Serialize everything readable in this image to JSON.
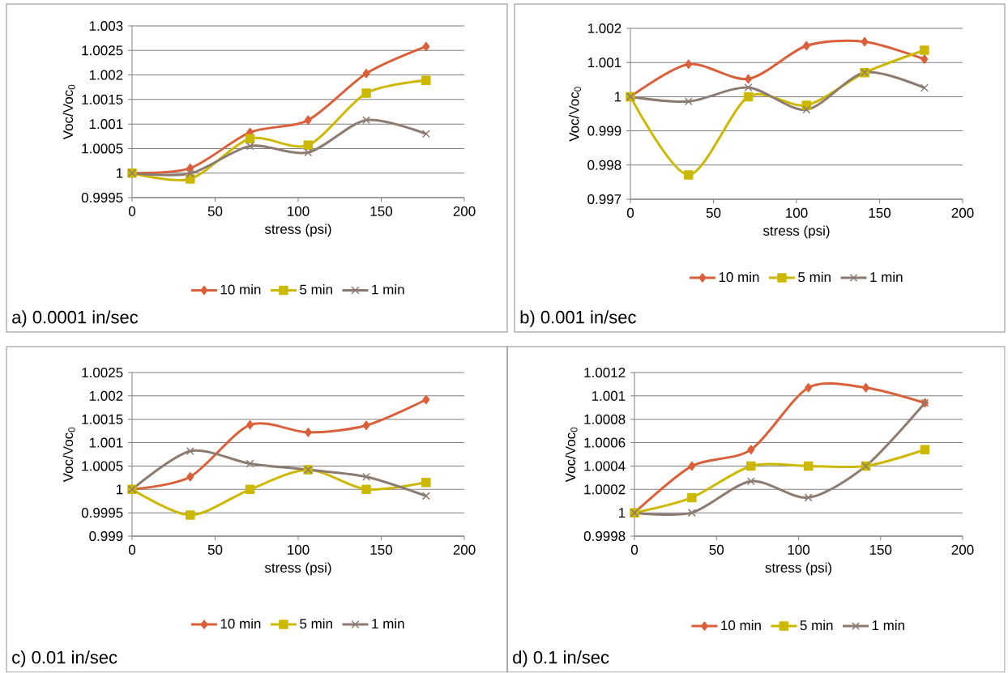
{
  "chart_data": [
    {
      "type": "line",
      "xlabel": "stress (psi)",
      "ylabel": "Voc/Voc$_{0}$",
      "x": [
        0,
        35,
        71,
        106,
        141,
        177
      ],
      "xlim": [
        0,
        200
      ],
      "xticks": [
        0,
        50,
        100,
        150,
        200
      ],
      "ylim": [
        0.9995,
        1.003
      ],
      "yticks": [
        0.9995,
        1,
        1.0005,
        1.001,
        1.0015,
        1.002,
        1.0025,
        1.003
      ],
      "grid": "y",
      "legend": "bottom",
      "line_style": "solid",
      "annotations": [
        "a) 0.0001 in/sec"
      ],
      "series": [
        {
          "name": "10 min",
          "color": "#d9603b",
          "marker": "diamond",
          "values": [
            1,
            1.0001,
            1.00083,
            1.00108,
            1.00203,
            1.00258
          ]
        },
        {
          "name": "5 min",
          "color": "#cdb800",
          "marker": "square",
          "values": [
            1,
            0.99988,
            1.0007,
            1.00057,
            1.00163,
            1.00189
          ]
        },
        {
          "name": "1 min",
          "color": "#8c7b70",
          "marker": "cross",
          "values": [
            1,
            0.99999,
            1.00055,
            1.00042,
            1.00108,
            1.0008
          ]
        }
      ]
    },
    {
      "type": "line",
      "xlabel": "stress (psi)",
      "ylabel": "Voc/Voc$_{0}$",
      "x": [
        0,
        35,
        71,
        106,
        141,
        177
      ],
      "xlim": [
        0,
        200
      ],
      "xticks": [
        0,
        50,
        100,
        150,
        200
      ],
      "ylim": [
        0.997,
        1.002
      ],
      "yticks": [
        0.997,
        0.998,
        0.999,
        1,
        1.001,
        1.002
      ],
      "grid": "y",
      "legend": "bottom",
      "line_style": "solid",
      "annotations": [
        "b) 0.001 in/sec"
      ],
      "series": [
        {
          "name": "10 min",
          "color": "#d9603b",
          "marker": "diamond",
          "values": [
            1,
            1.00095,
            1.00052,
            1.00149,
            1.00161,
            1.0011
          ]
        },
        {
          "name": "5 min",
          "color": "#cdb800",
          "marker": "square",
          "values": [
            1,
            0.99771,
            1.0,
            0.99975,
            1.0007,
            1.00136
          ]
        },
        {
          "name": "1 min",
          "color": "#8c7b70",
          "marker": "cross",
          "values": [
            1,
            0.99986,
            1.00027,
            0.99962,
            1.00071,
            1.00026
          ]
        }
      ]
    },
    {
      "type": "line",
      "xlabel": "stress (psi)",
      "ylabel": "Voc/Voc$_{0}$",
      "x": [
        0,
        35,
        71,
        106,
        141,
        177
      ],
      "xlim": [
        0,
        200
      ],
      "xticks": [
        0,
        50,
        100,
        150,
        200
      ],
      "ylim": [
        0.999,
        1.0025
      ],
      "yticks": [
        0.999,
        0.9995,
        1,
        1.0005,
        1.001,
        1.0015,
        1.002,
        1.0025
      ],
      "grid": "y",
      "legend": "bottom",
      "line_style": "solid",
      "annotations": [
        "c) 0.01 in/sec"
      ],
      "series": [
        {
          "name": "10 min",
          "color": "#d9603b",
          "marker": "diamond",
          "values": [
            1,
            1.00027,
            1.00138,
            1.00122,
            1.00137,
            1.00192
          ]
        },
        {
          "name": "5 min",
          "color": "#cdb800",
          "marker": "square",
          "values": [
            1,
            0.99945,
            1.0,
            1.00042,
            1.0,
            1.00015
          ]
        },
        {
          "name": "1 min",
          "color": "#8c7b70",
          "marker": "cross",
          "values": [
            1,
            1.00082,
            1.00055,
            1.00042,
            1.00027,
            0.99986
          ]
        }
      ]
    },
    {
      "type": "line",
      "xlabel": "stress (psi)",
      "ylabel": "Voc/Voc$_{0}$",
      "x": [
        0,
        35,
        71,
        106,
        141,
        177
      ],
      "xlim": [
        0,
        200
      ],
      "xticks": [
        0,
        50,
        100,
        150,
        200
      ],
      "ylim": [
        0.9998,
        1.0012
      ],
      "yticks": [
        0.9998,
        1,
        1.0002,
        1.0004,
        1.0006,
        1.0008,
        1.001,
        1.0012
      ],
      "grid": "y",
      "legend": "bottom",
      "line_style": "solid",
      "annotations": [
        "d) 0.1 in/sec"
      ],
      "series": [
        {
          "name": "10 min",
          "color": "#d9603b",
          "marker": "diamond",
          "values": [
            1,
            1.0004,
            1.00054,
            1.00107,
            1.00107,
            1.00094
          ]
        },
        {
          "name": "5 min",
          "color": "#cdb800",
          "marker": "square",
          "values": [
            1,
            1.00013,
            1.0004,
            1.0004,
            1.0004,
            1.00054
          ]
        },
        {
          "name": "1 min",
          "color": "#8c7b70",
          "marker": "cross",
          "values": [
            1,
            1.0,
            1.00027,
            1.00013,
            1.0004,
            1.00094
          ]
        }
      ]
    }
  ]
}
